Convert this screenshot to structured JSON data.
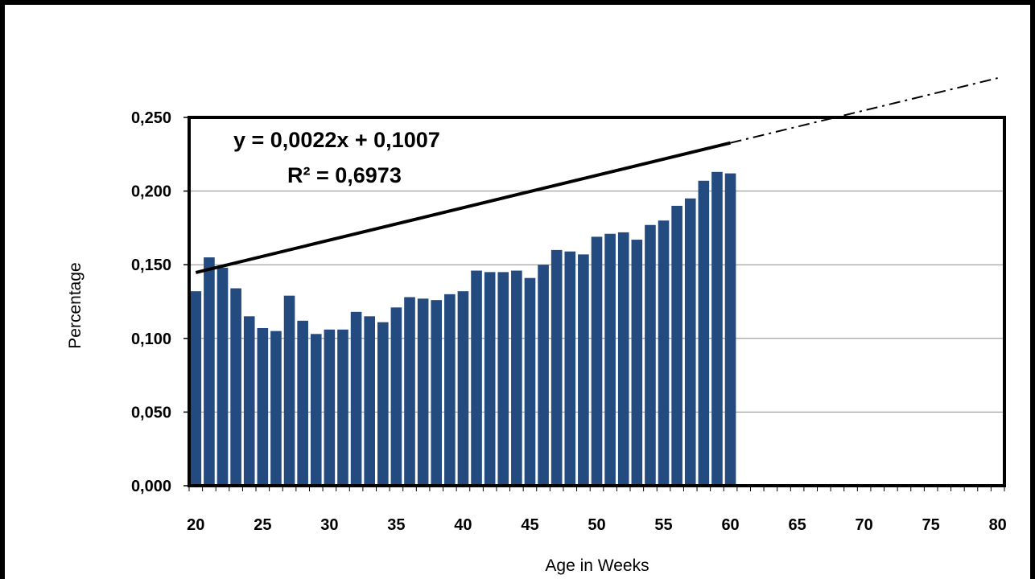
{
  "chart_data": {
    "type": "bar",
    "xlabel": "Age in Weeks",
    "ylabel": "Percentage",
    "xlim": [
      20,
      80
    ],
    "ylim": [
      0,
      0.25
    ],
    "x_ticks": [
      "20",
      "25",
      "30",
      "35",
      "40",
      "45",
      "50",
      "55",
      "60",
      "65",
      "70",
      "75",
      "80"
    ],
    "y_ticks": [
      "0,000",
      "0,050",
      "0,100",
      "0,150",
      "0,200",
      "0,250"
    ],
    "grid": true,
    "legend": "none",
    "bar_color": "#244b7f",
    "x": [
      20,
      21,
      22,
      23,
      24,
      25,
      26,
      27,
      28,
      29,
      30,
      31,
      32,
      33,
      34,
      35,
      36,
      37,
      38,
      39,
      40,
      41,
      42,
      43,
      44,
      45,
      46,
      47,
      48,
      49,
      50,
      51,
      52,
      53,
      54,
      55,
      56,
      57,
      58,
      59,
      60
    ],
    "values": [
      0.132,
      0.155,
      0.148,
      0.134,
      0.115,
      0.107,
      0.105,
      0.129,
      0.112,
      0.103,
      0.106,
      0.106,
      0.118,
      0.115,
      0.111,
      0.121,
      0.128,
      0.127,
      0.126,
      0.13,
      0.132,
      0.146,
      0.145,
      0.145,
      0.146,
      0.141,
      0.15,
      0.16,
      0.159,
      0.157,
      0.169,
      0.171,
      0.172,
      0.167,
      0.177,
      0.18,
      0.19,
      0.195,
      0.207,
      0.213,
      0.212
    ],
    "trendline": {
      "type": "linear",
      "slope": 0.0022,
      "intercept": 0.1007,
      "solid_range": [
        20,
        60
      ],
      "forecast_range": [
        60,
        80
      ],
      "equation_text": "y = 0,0022x + 0,1007",
      "r2_text": "R² = 0,6973"
    }
  }
}
